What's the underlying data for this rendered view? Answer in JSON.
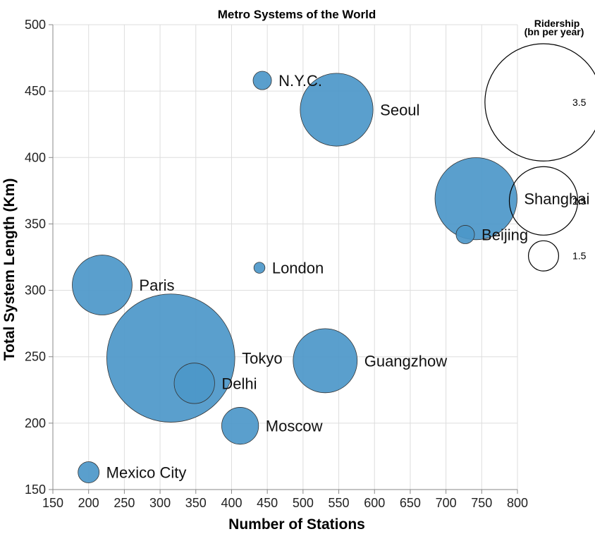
{
  "chart_data": {
    "type": "scatter",
    "title": "Metro Systems of the World",
    "xlabel": "Number of Stations",
    "ylabel": "Total System Length (Km)",
    "xlim": [
      150,
      800
    ],
    "ylim": [
      150,
      500
    ],
    "x_ticks": [
      150,
      200,
      250,
      300,
      350,
      400,
      450,
      500,
      550,
      600,
      650,
      700,
      750,
      800
    ],
    "y_ticks": [
      150,
      200,
      250,
      300,
      350,
      400,
      450,
      500
    ],
    "grid": true,
    "size_legend": {
      "title_line1": "Ridership",
      "title_line2": "(bn per year)",
      "placement": "top-right",
      "entries": [
        {
          "value": 3.5,
          "label": "3.5"
        },
        {
          "value": 2.5,
          "label": "2.5"
        },
        {
          "value": 1.5,
          "label": "1.5"
        }
      ]
    },
    "color": "#4c97c9",
    "points": [
      {
        "name": "N.Y.C.",
        "x": 443,
        "y": 458,
        "ridership": 1.1
      },
      {
        "name": "Seoul",
        "x": 547,
        "y": 436,
        "ridership": 2.6
      },
      {
        "name": "Shanghai",
        "x": 742,
        "y": 369,
        "ridership": 2.8
      },
      {
        "name": "Beijing",
        "x": 727,
        "y": 342,
        "ridership": 1.1
      },
      {
        "name": "London",
        "x": 439,
        "y": 317,
        "ridership": 0.8
      },
      {
        "name": "Paris",
        "x": 219,
        "y": 304,
        "ridership": 2.3
      },
      {
        "name": "Tokyo",
        "x": 315,
        "y": 249,
        "ridership": 3.7
      },
      {
        "name": "Delhi",
        "x": 348,
        "y": 230,
        "ridership": 1.8
      },
      {
        "name": "Guangzhow",
        "x": 531,
        "y": 247,
        "ridership": 2.4
      },
      {
        "name": "Moscow",
        "x": 412,
        "y": 198,
        "ridership": 1.7
      },
      {
        "name": "Mexico City",
        "x": 200,
        "y": 163,
        "ridership": 1.2
      }
    ]
  }
}
